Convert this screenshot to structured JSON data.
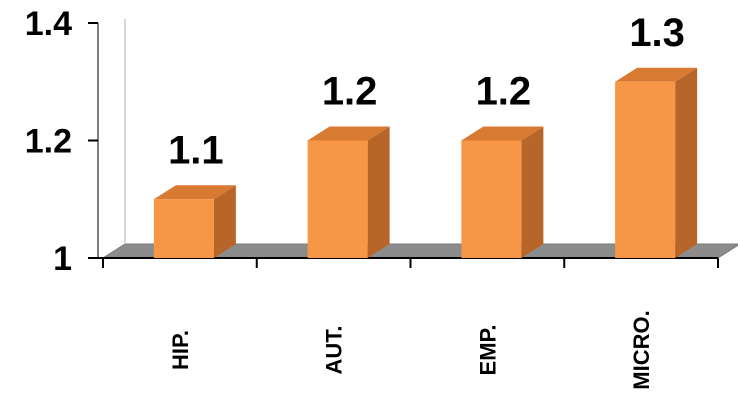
{
  "chart_data": {
    "type": "bar",
    "style": "3d-column",
    "categories": [
      "HIP.",
      "AUT.",
      "EMP.",
      "MICRO."
    ],
    "values": [
      1.1,
      1.2,
      1.2,
      1.3
    ],
    "data_labels": [
      "1.1",
      "1.2",
      "1.2",
      "1.3"
    ],
    "yticks": [
      1,
      1.2,
      1.4
    ],
    "ytick_labels": [
      "1",
      "1.2",
      "1.4"
    ],
    "ylim": [
      1,
      1.4
    ],
    "title": "",
    "xlabel": "",
    "ylabel": "",
    "grid": false,
    "legend": "none",
    "colors": {
      "bar_front": "#F79646",
      "bar_side": "#B8652A",
      "bar_top": "#D97A32",
      "floor": "#8C8C8C",
      "axis": "#7F7F7F"
    }
  }
}
